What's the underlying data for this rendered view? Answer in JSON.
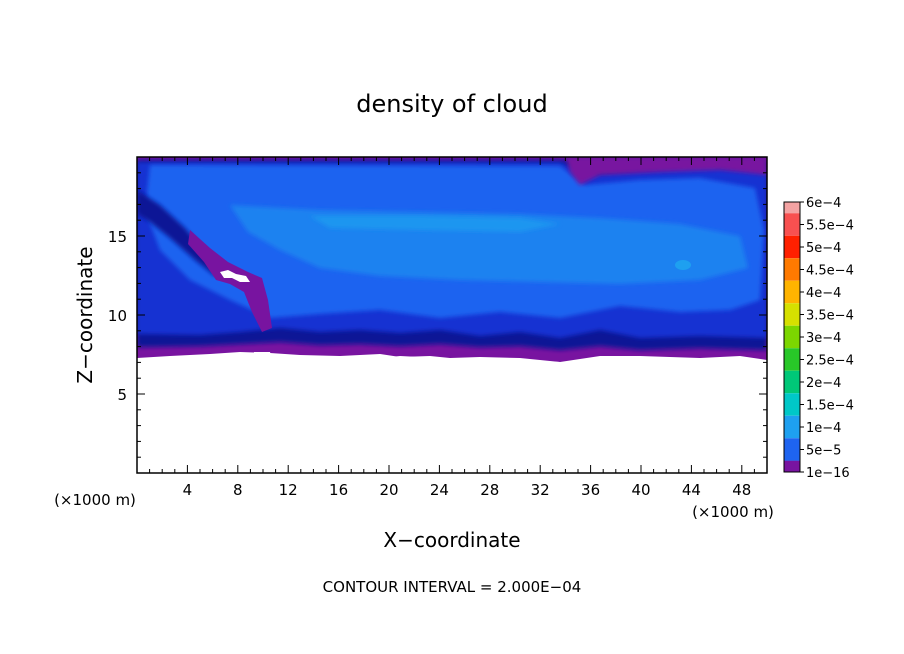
{
  "chart_data": {
    "type": "heatmap",
    "title": "density of cloud",
    "xlabel": "X−coordinate",
    "ylabel": "Z−coordinate",
    "x_unit_left": "(×1000 m)",
    "x_unit_right": "(×1000 m)",
    "footer": "CONTOUR INTERVAL = 2.000E−04",
    "xlim": [
      0,
      50
    ],
    "ylim": [
      0,
      20
    ],
    "x_ticks": [
      "4",
      "8",
      "12",
      "16",
      "20",
      "24",
      "28",
      "32",
      "36",
      "40",
      "44",
      "48"
    ],
    "x_tick_values": [
      4,
      8,
      12,
      16,
      20,
      24,
      28,
      32,
      36,
      40,
      44,
      48
    ],
    "y_ticks": [
      "5",
      "10",
      "15"
    ],
    "y_tick_values": [
      5,
      10,
      15
    ],
    "colorbar": {
      "levels": [
        {
          "label": "6e−4",
          "color": "#f4a3a3"
        },
        {
          "label": "5.5e−4",
          "color": "#f85050"
        },
        {
          "label": "5e−4",
          "color": "#ff2000"
        },
        {
          "label": "4.5e−4",
          "color": "#ff7a00"
        },
        {
          "label": "4e−4",
          "color": "#ffb400"
        },
        {
          "label": "3.5e−4",
          "color": "#d6e000"
        },
        {
          "label": "3e−4",
          "color": "#7cd600"
        },
        {
          "label": "2.5e−4",
          "color": "#28c828"
        },
        {
          "label": "2e−4",
          "color": "#00c878"
        },
        {
          "label": "1.5e−4",
          "color": "#00c8c8"
        },
        {
          "label": "1e−4",
          "color": "#1ea0f0"
        },
        {
          "label": "5e−5",
          "color": "#1e64f0"
        },
        {
          "label": "1e−16",
          "color": "#1232d2"
        }
      ],
      "bottom_color": "#7814a0",
      "extra_color": "#0a1496"
    },
    "field": {
      "cloud_base_z": 6.9,
      "cloud_top_z": 19.8,
      "dominant_level": "1e−4"
    }
  }
}
